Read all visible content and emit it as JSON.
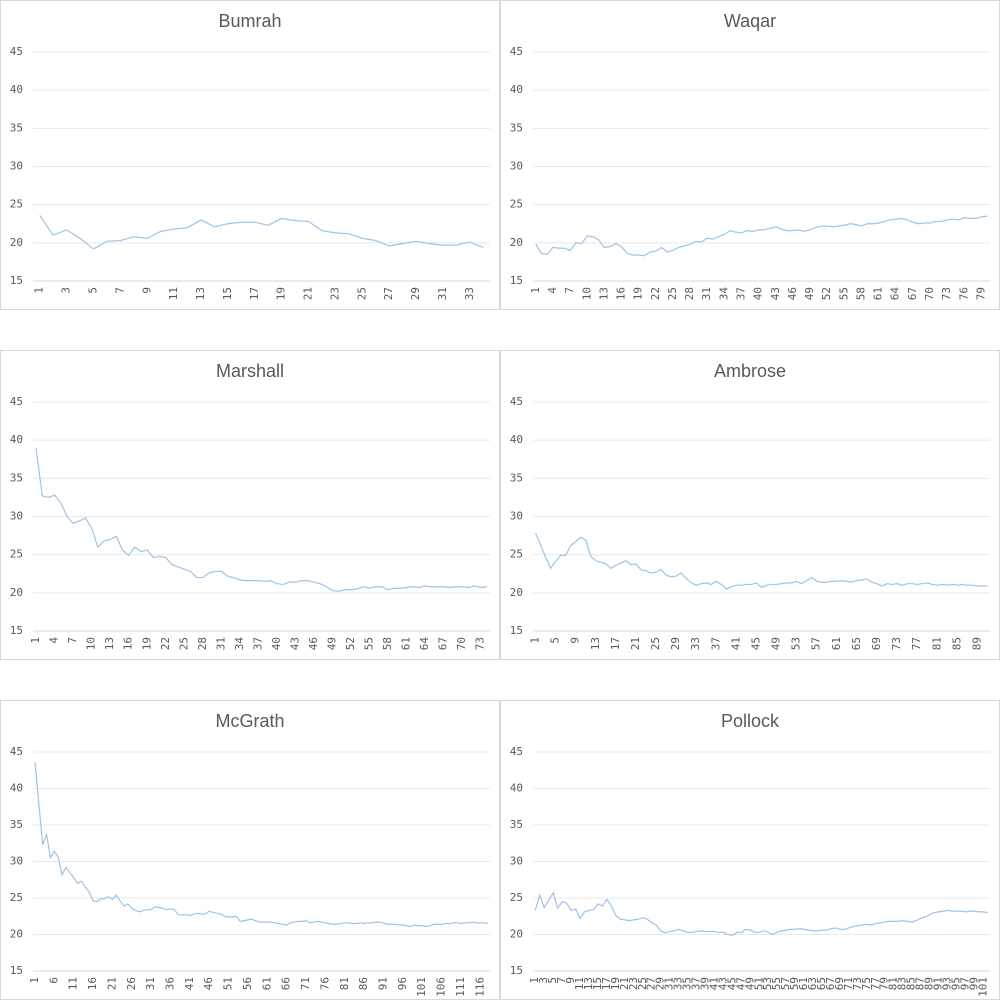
{
  "chart_data": [
    {
      "type": "line",
      "title": "Bumrah",
      "color": "#9dc3e6",
      "grid": true,
      "ylim": [
        15,
        45
      ],
      "yticks": [
        15,
        20,
        25,
        30,
        35,
        40,
        45
      ],
      "categories": [
        1,
        null,
        3,
        null,
        5,
        null,
        7,
        null,
        9,
        null,
        11,
        null,
        13,
        null,
        15,
        null,
        17,
        null,
        19,
        null,
        21,
        null,
        23,
        null,
        25,
        null,
        27,
        null,
        29,
        null,
        31,
        null,
        33,
        null
      ],
      "values": [
        23.6,
        21.0,
        21.7,
        20.6,
        19.2,
        20.2,
        20.3,
        20.8,
        20.6,
        21.5,
        21.8,
        22.0,
        23.0,
        22.1,
        22.5,
        22.7,
        22.7,
        22.3,
        23.2,
        22.9,
        22.8,
        21.6,
        21.3,
        21.2,
        20.6,
        20.3,
        19.6,
        19.9,
        20.2,
        19.9,
        19.7,
        19.7,
        20.1,
        19.4
      ]
    },
    {
      "type": "line",
      "title": "Waqar",
      "color": "#9dc3e6",
      "grid": true,
      "ylim": [
        15,
        45
      ],
      "yticks": [
        15,
        20,
        25,
        30,
        35,
        40,
        45
      ],
      "categories": [
        1,
        null,
        null,
        4,
        null,
        null,
        7,
        null,
        null,
        10,
        null,
        null,
        13,
        null,
        null,
        16,
        null,
        null,
        19,
        null,
        null,
        22,
        null,
        null,
        25,
        null,
        null,
        28,
        null,
        null,
        31,
        null,
        null,
        34,
        null,
        null,
        37,
        null,
        null,
        40,
        null,
        null,
        43,
        null,
        null,
        46,
        null,
        null,
        49,
        null,
        null,
        52,
        null,
        null,
        55,
        null,
        null,
        58,
        null,
        null,
        61,
        null,
        null,
        64,
        null,
        null,
        67,
        null,
        null,
        70,
        null,
        null,
        73,
        null,
        null,
        76,
        null,
        null,
        79,
        null
      ],
      "values": [
        19.8,
        18.6,
        18.5,
        19.4,
        19.3,
        19.3,
        19.0,
        20.0,
        19.9,
        20.9,
        20.8,
        20.4,
        19.4,
        19.5,
        19.9,
        19.5,
        18.6,
        18.4,
        18.4,
        18.3,
        18.8,
        18.9,
        19.4,
        18.8,
        19.0,
        19.4,
        19.6,
        19.8,
        20.2,
        20.1,
        20.6,
        20.5,
        20.8,
        21.1,
        21.6,
        21.4,
        21.3,
        21.6,
        21.5,
        21.7,
        21.7,
        21.9,
        22.1,
        21.8,
        21.6,
        21.6,
        21.7,
        21.5,
        21.7,
        22.0,
        22.2,
        22.2,
        22.1,
        22.2,
        22.3,
        22.5,
        22.4,
        22.2,
        22.5,
        22.5,
        22.6,
        22.8,
        23.0,
        23.1,
        23.2,
        23.0,
        22.7,
        22.5,
        22.6,
        22.6,
        22.8,
        22.8,
        23.0,
        23.1,
        23.0,
        23.3,
        23.2,
        23.2,
        23.4,
        23.5
      ]
    },
    {
      "type": "line",
      "title": "Marshall",
      "color": "#9dc3e6",
      "grid": true,
      "ylim": [
        15,
        45
      ],
      "yticks": [
        15,
        20,
        25,
        30,
        35,
        40,
        45
      ],
      "categories": [
        1,
        null,
        null,
        4,
        null,
        null,
        7,
        null,
        null,
        10,
        null,
        null,
        13,
        null,
        null,
        16,
        null,
        null,
        19,
        null,
        null,
        22,
        null,
        null,
        25,
        null,
        null,
        28,
        null,
        null,
        31,
        null,
        null,
        34,
        null,
        null,
        37,
        null,
        null,
        40,
        null,
        null,
        43,
        null,
        null,
        46,
        null,
        null,
        49,
        null,
        null,
        52,
        null,
        null,
        55,
        null,
        null,
        58,
        null,
        null,
        61,
        null,
        null,
        64,
        null,
        null,
        67,
        null,
        null,
        70,
        null,
        null,
        73,
        null
      ],
      "values": [
        39.0,
        32.7,
        32.5,
        32.8,
        31.8,
        30.0,
        29.1,
        29.4,
        29.8,
        28.5,
        26.0,
        26.8,
        27.0,
        27.4,
        25.6,
        24.9,
        26.0,
        25.4,
        25.6,
        24.6,
        24.8,
        24.6,
        23.7,
        23.4,
        23.1,
        22.8,
        22.0,
        22.0,
        22.6,
        22.8,
        22.8,
        22.2,
        22.0,
        21.7,
        21.6,
        21.6,
        21.6,
        21.5,
        21.6,
        21.2,
        21.1,
        21.4,
        21.4,
        21.6,
        21.6,
        21.4,
        21.2,
        20.8,
        20.3,
        20.2,
        20.4,
        20.4,
        20.5,
        20.8,
        20.6,
        20.8,
        20.8,
        20.4,
        20.6,
        20.6,
        20.7,
        20.8,
        20.7,
        20.9,
        20.8,
        20.8,
        20.8,
        20.7,
        20.8,
        20.8,
        20.7,
        20.9,
        20.7,
        20.8
      ]
    },
    {
      "type": "line",
      "title": "Ambrose",
      "color": "#9dc3e6",
      "grid": true,
      "ylim": [
        15,
        45
      ],
      "yticks": [
        15,
        20,
        25,
        30,
        35,
        40,
        45
      ],
      "categories": [
        1,
        null,
        null,
        null,
        5,
        null,
        null,
        null,
        9,
        null,
        null,
        null,
        13,
        null,
        null,
        null,
        17,
        null,
        null,
        null,
        21,
        null,
        null,
        null,
        25,
        null,
        null,
        null,
        29,
        null,
        null,
        null,
        33,
        null,
        null,
        null,
        37,
        null,
        null,
        null,
        41,
        null,
        null,
        null,
        45,
        null,
        null,
        null,
        49,
        null,
        null,
        null,
        53,
        null,
        null,
        null,
        57,
        null,
        null,
        null,
        61,
        null,
        null,
        null,
        65,
        null,
        null,
        null,
        69,
        null,
        null,
        null,
        73,
        null,
        null,
        null,
        77,
        null,
        null,
        null,
        81,
        null,
        null,
        null,
        85,
        null,
        null,
        null,
        89,
        null,
        null
      ],
      "values": [
        27.8,
        26.3,
        24.7,
        23.2,
        24.1,
        24.9,
        24.9,
        26.2,
        26.7,
        27.3,
        26.9,
        24.8,
        24.2,
        24.0,
        23.8,
        23.2,
        23.6,
        23.9,
        24.2,
        23.7,
        23.8,
        23.0,
        22.9,
        22.6,
        22.7,
        23.1,
        22.3,
        22.1,
        22.2,
        22.6,
        21.9,
        21.3,
        21.0,
        21.2,
        21.3,
        21.1,
        21.5,
        21.1,
        20.5,
        20.8,
        21.0,
        21.0,
        21.1,
        21.1,
        21.3,
        20.7,
        21.0,
        21.1,
        21.1,
        21.2,
        21.3,
        21.3,
        21.5,
        21.2,
        21.6,
        22.0,
        21.5,
        21.4,
        21.4,
        21.5,
        21.5,
        21.6,
        21.5,
        21.4,
        21.6,
        21.7,
        21.8,
        21.4,
        21.2,
        20.9,
        21.2,
        21.1,
        21.2,
        21.0,
        21.2,
        21.2,
        21.1,
        21.2,
        21.3,
        21.1,
        21.0,
        21.1,
        21.0,
        21.1,
        21.0,
        21.1,
        21.0,
        21.0,
        20.9,
        20.9,
        20.9
      ]
    },
    {
      "type": "line",
      "title": "McGrath",
      "color": "#9dc3e6",
      "grid": true,
      "ylim": [
        15,
        45
      ],
      "yticks": [
        15,
        20,
        25,
        30,
        35,
        40,
        45
      ],
      "categories": [
        1,
        null,
        null,
        null,
        null,
        6,
        null,
        null,
        null,
        null,
        11,
        null,
        null,
        null,
        null,
        16,
        null,
        null,
        null,
        null,
        21,
        null,
        null,
        null,
        null,
        26,
        null,
        null,
        null,
        null,
        31,
        null,
        null,
        null,
        null,
        36,
        null,
        null,
        null,
        null,
        41,
        null,
        null,
        null,
        null,
        46,
        null,
        null,
        null,
        null,
        51,
        null,
        null,
        null,
        null,
        56,
        null,
        null,
        null,
        null,
        61,
        null,
        null,
        null,
        null,
        66,
        null,
        null,
        null,
        null,
        71,
        null,
        null,
        null,
        null,
        76,
        null,
        null,
        null,
        null,
        81,
        null,
        null,
        null,
        null,
        86,
        null,
        null,
        null,
        null,
        91,
        null,
        null,
        null,
        null,
        96,
        null,
        null,
        null,
        null,
        101,
        null,
        null,
        null,
        null,
        106,
        null,
        null,
        null,
        null,
        111,
        null,
        null,
        null,
        null,
        116,
        null,
        null
      ],
      "values": [
        43.6,
        38.0,
        32.3,
        33.7,
        30.5,
        31.4,
        30.6,
        28.2,
        29.2,
        28.5,
        27.8,
        27.0,
        27.3,
        26.5,
        25.8,
        24.6,
        24.5,
        24.9,
        24.9,
        25.2,
        24.8,
        25.4,
        24.6,
        23.9,
        24.2,
        23.6,
        23.3,
        23.1,
        23.3,
        23.4,
        23.4,
        23.8,
        23.7,
        23.6,
        23.4,
        23.5,
        23.4,
        22.7,
        22.7,
        22.7,
        22.6,
        22.8,
        22.9,
        22.8,
        22.8,
        23.2,
        23.0,
        22.9,
        22.8,
        22.5,
        22.4,
        22.4,
        22.5,
        21.8,
        21.9,
        22.0,
        22.1,
        21.9,
        21.7,
        21.7,
        21.7,
        21.7,
        21.6,
        21.5,
        21.4,
        21.3,
        21.6,
        21.7,
        21.8,
        21.8,
        21.9,
        21.6,
        21.7,
        21.8,
        21.7,
        21.6,
        21.5,
        21.4,
        21.4,
        21.5,
        21.6,
        21.6,
        21.5,
        21.5,
        21.6,
        21.5,
        21.6,
        21.6,
        21.7,
        21.7,
        21.6,
        21.4,
        21.4,
        21.4,
        21.3,
        21.3,
        21.2,
        21.1,
        21.3,
        21.2,
        21.2,
        21.1,
        21.2,
        21.4,
        21.4,
        21.4,
        21.5,
        21.5,
        21.6,
        21.6,
        21.5,
        21.6,
        21.6,
        21.7,
        21.6,
        21.6,
        21.6,
        21.5
      ]
    },
    {
      "type": "line",
      "title": "Pollock",
      "color": "#9dc3e6",
      "grid": true,
      "ylim": [
        15,
        45
      ],
      "yticks": [
        15,
        20,
        25,
        30,
        35,
        40,
        45
      ],
      "categories": [
        1,
        null,
        3,
        null,
        5,
        null,
        7,
        null,
        9,
        null,
        11,
        null,
        13,
        null,
        15,
        null,
        17,
        null,
        19,
        null,
        21,
        null,
        23,
        null,
        25,
        null,
        27,
        null,
        29,
        null,
        31,
        null,
        33,
        null,
        35,
        null,
        37,
        null,
        39,
        null,
        41,
        null,
        43,
        null,
        45,
        null,
        47,
        null,
        49,
        null,
        51,
        null,
        53,
        null,
        55,
        null,
        57,
        null,
        59,
        null,
        61,
        null,
        63,
        null,
        65,
        null,
        67,
        null,
        69,
        null,
        71,
        null,
        73,
        null,
        75,
        null,
        77,
        null,
        79,
        null,
        81,
        null,
        83,
        null,
        85,
        null,
        87,
        null,
        89,
        null,
        91,
        null,
        93,
        null,
        95,
        null,
        97,
        null,
        99,
        null,
        101,
        null
      ],
      "values": [
        23.3,
        25.4,
        23.7,
        24.7,
        25.7,
        23.6,
        24.5,
        24.3,
        23.3,
        23.5,
        22.2,
        23.1,
        23.3,
        23.4,
        24.2,
        23.9,
        24.8,
        23.9,
        22.6,
        22.1,
        22.0,
        21.9,
        22.0,
        22.1,
        22.3,
        22.1,
        21.6,
        21.3,
        20.5,
        20.2,
        20.4,
        20.5,
        20.7,
        20.5,
        20.3,
        20.3,
        20.4,
        20.5,
        20.4,
        20.4,
        20.4,
        20.3,
        20.3,
        20.0,
        19.9,
        20.3,
        20.3,
        20.7,
        20.6,
        20.3,
        20.3,
        20.5,
        20.3,
        20.0,
        20.3,
        20.5,
        20.6,
        20.7,
        20.7,
        20.8,
        20.7,
        20.6,
        20.5,
        20.5,
        20.6,
        20.6,
        20.8,
        20.9,
        20.7,
        20.7,
        20.9,
        21.1,
        21.2,
        21.3,
        21.4,
        21.3,
        21.5,
        21.6,
        21.7,
        21.8,
        21.8,
        21.8,
        21.9,
        21.8,
        21.7,
        21.9,
        22.2,
        22.4,
        22.7,
        23.0,
        23.1,
        23.2,
        23.3,
        23.2,
        23.2,
        23.2,
        23.1,
        23.2,
        23.2,
        23.1,
        23.1,
        23.0
      ]
    }
  ]
}
